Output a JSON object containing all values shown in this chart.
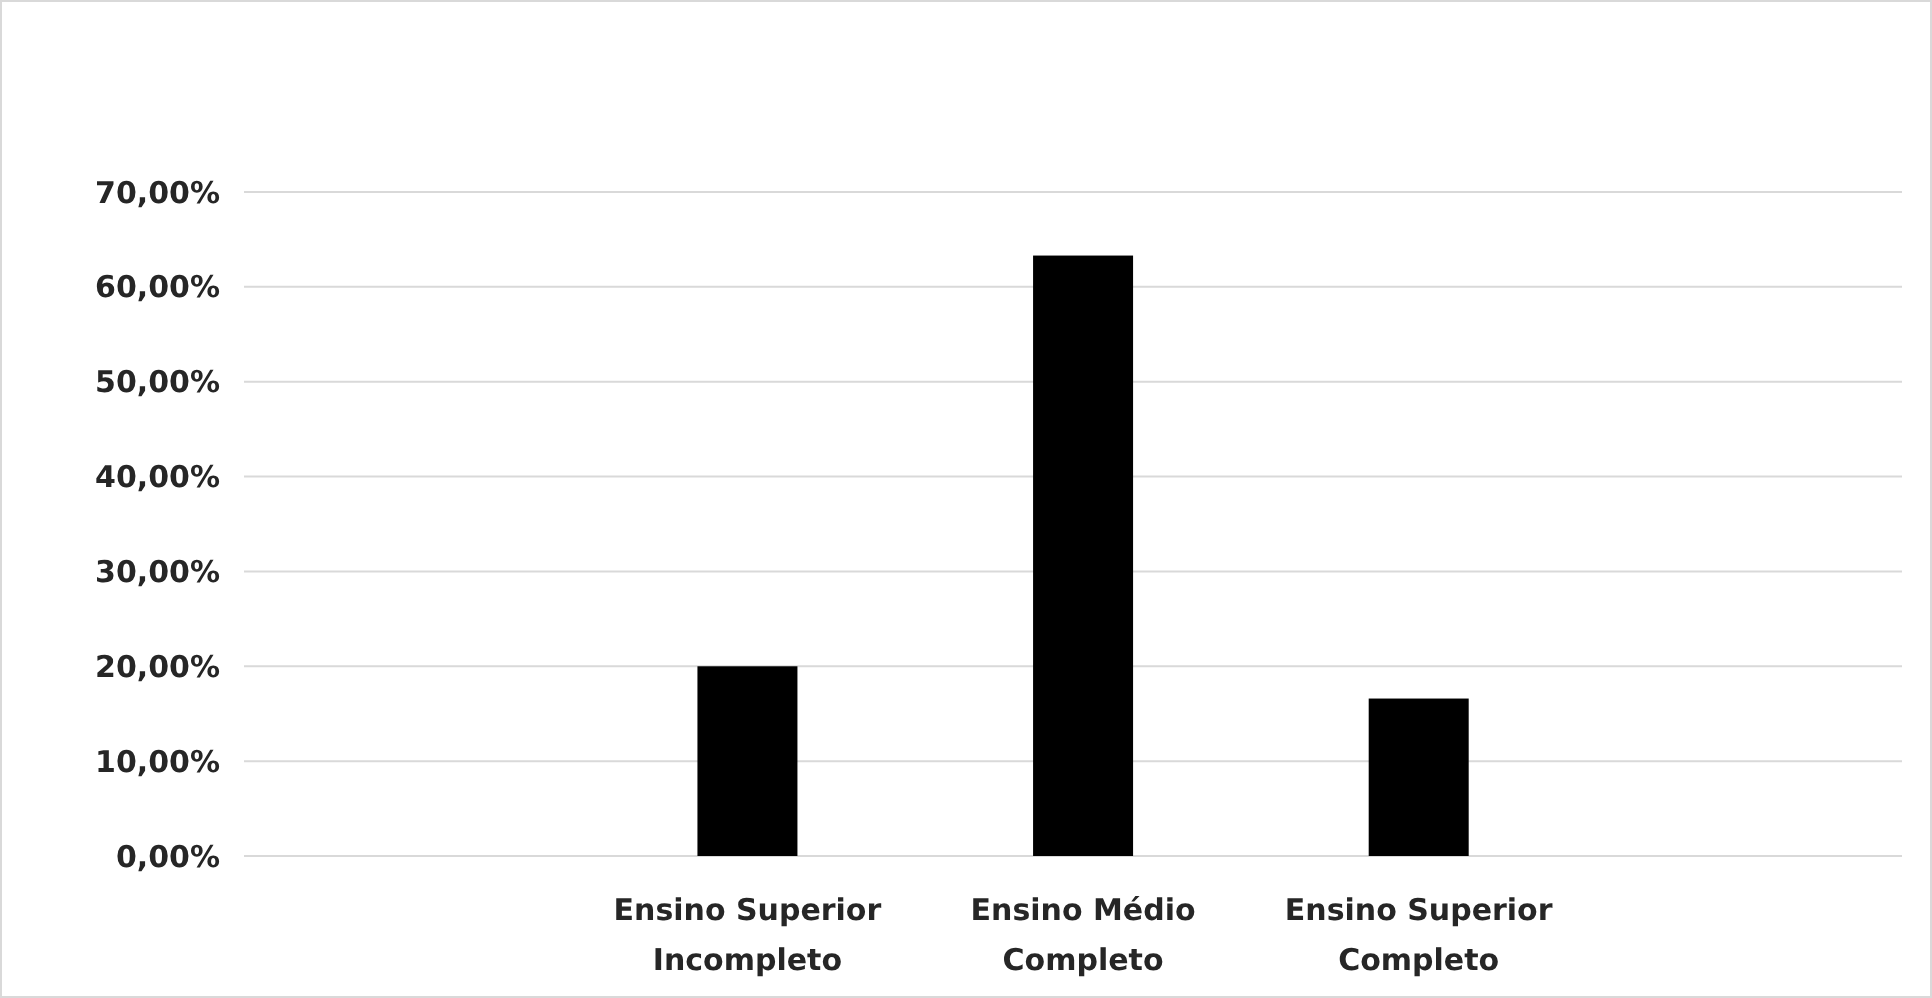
{
  "chart_data": {
    "type": "bar",
    "categories": [
      null,
      "Ensino Superior Incompleto",
      "Ensino Médio Completo",
      "Ensino Superior Completo",
      null
    ],
    "values": [
      null,
      20,
      63.3,
      16.6,
      null
    ],
    "color": "#000000",
    "ylim": [
      0,
      70
    ],
    "yticks": [
      {
        "value": 0,
        "label": "0,00%"
      },
      {
        "value": 10,
        "label": "10,00%"
      },
      {
        "value": 20,
        "label": "20,00%"
      },
      {
        "value": 30,
        "label": "30,00%"
      },
      {
        "value": 40,
        "label": "40,00%"
      },
      {
        "value": 50,
        "label": "50,00%"
      },
      {
        "value": 60,
        "label": "60,00%"
      },
      {
        "value": 70,
        "label": "70,00%"
      }
    ],
    "grid": "y"
  }
}
